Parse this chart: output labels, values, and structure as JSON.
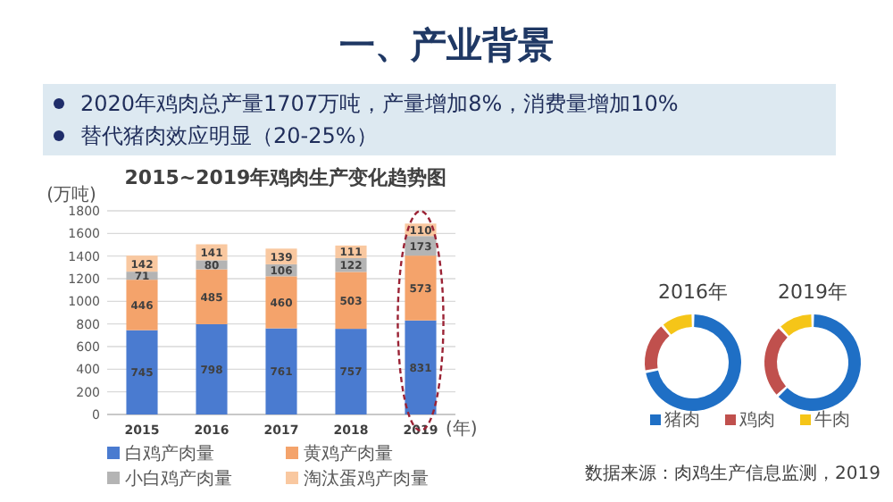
{
  "chart_data": [
    {
      "type": "bar",
      "title": "2015~2019年鸡肉生产变化趋势图",
      "ylabel": "(万吨)",
      "xlabel": "(年)",
      "annotations": [
        "一、产业背景",
        "2020年鸡肉总产量1707万吨，产量增加8%，消费量增加10%",
        "替代猪肉效应明显（20-25%）"
      ],
      "categories": [
        "2015",
        "2016",
        "2017",
        "2018",
        "2019"
      ],
      "stacked": true,
      "data_labels": true,
      "ylim": [
        0,
        1800
      ],
      "yticks": [
        0,
        200,
        400,
        600,
        800,
        1000,
        1200,
        1400,
        1600,
        1800
      ],
      "grid": "y",
      "legend": "bottom",
      "series": [
        {
          "name": "白鸡产肉量",
          "color": "#4a7bd0",
          "values": [
            745,
            798,
            761,
            757,
            831
          ]
        },
        {
          "name": "黄鸡产肉量",
          "color": "#f4a36b",
          "values": [
            446,
            485,
            460,
            503,
            573
          ]
        },
        {
          "name": "小白鸡产肉量",
          "color": "#b4b4b4",
          "values": [
            71,
            80,
            106,
            122,
            173
          ]
        },
        {
          "name": "淘汰蛋鸡产肉量",
          "color": "#f9c8a0",
          "values": [
            142,
            141,
            139,
            111,
            110
          ]
        }
      ]
    },
    {
      "type": "donut",
      "title": "2016年",
      "categories": [
        null,
        null,
        null
      ],
      "values": [
        72,
        17,
        11
      ],
      "colors": [
        "#1f6fc5",
        "#c0504d",
        "#f5c518"
      ]
    },
    {
      "type": "donut",
      "title": "2019年",
      "categories": [
        "猪肉",
        "鸡肉",
        "牛肉"
      ],
      "values": [
        63,
        25,
        12
      ],
      "colors": [
        "#1f6fc5",
        "#c0504d",
        "#f5c518"
      ],
      "legend": "bottom",
      "annotations": [
        "数据来源：肉鸡生产信息监测，2019"
      ]
    }
  ]
}
